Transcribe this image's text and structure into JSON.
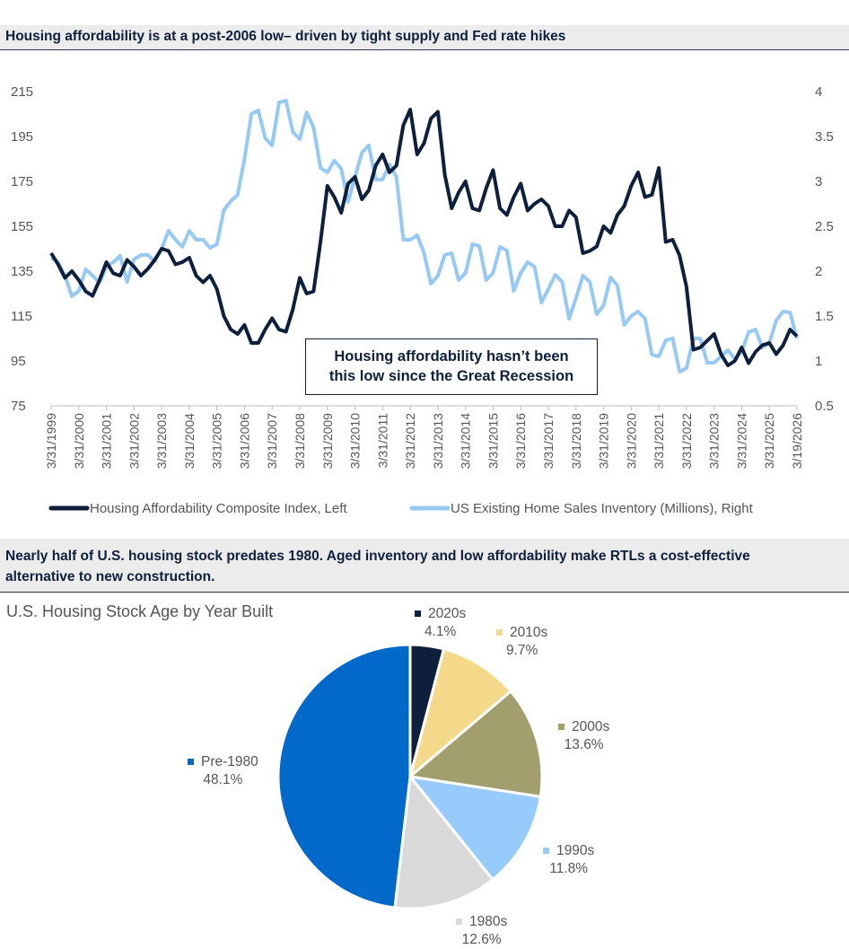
{
  "top_chart": {
    "banner": "Housing affordability is at a post-2006 low– driven by tight supply and Fed rate hikes",
    "callout_line1": "Housing affordability hasn’t been",
    "callout_line2": "this low since the Great Recession"
  },
  "bottom_section": {
    "banner_line1": "Nearly half of U.S. housing stock predates 1980. Aged inventory and low affordability make RTLs a cost-effective",
    "banner_line2": "alternative to new construction."
  },
  "chart_data": [
    {
      "type": "line",
      "title": "",
      "x_tick_labels": [
        "3/31/1999",
        "3/31/2000",
        "3/31/2001",
        "3/31/2002",
        "3/31/2003",
        "3/31/2004",
        "3/31/2005",
        "3/31/2006",
        "3/31/2007",
        "3/31/2008",
        "3/31/2009",
        "3/31/2010",
        "3/31/2011",
        "3/31/2012",
        "3/31/2013",
        "3/31/2014",
        "3/31/2015",
        "3/31/2016",
        "3/31/2017",
        "3/31/2018",
        "3/31/2019",
        "3/31/2020",
        "3/31/2021",
        "3/31/2022",
        "3/31/2023",
        "3/31/2024",
        "3/31/2025",
        "3/19/2026"
      ],
      "x_range": [
        1999.0,
        2026.0
      ],
      "y_left": {
        "ticks": [
          "75",
          "95",
          "115",
          "135",
          "155",
          "175",
          "195",
          "215"
        ],
        "range": [
          75,
          215
        ]
      },
      "y_right": {
        "ticks": [
          "0.5",
          "1",
          "1.5",
          "2",
          "2.5",
          "3",
          "3.5",
          "4"
        ],
        "range": [
          0.5,
          4
        ]
      },
      "grid": false,
      "legend_position": "bottom",
      "series": [
        {
          "name": "Housing Affordability Composite Index, Left",
          "axis": "left",
          "color": "#0d1f3c",
          "points": [
            [
              1999.0,
              143
            ],
            [
              1999.25,
              138
            ],
            [
              1999.5,
              132
            ],
            [
              1999.75,
              135
            ],
            [
              2000.0,
              131
            ],
            [
              2000.25,
              126
            ],
            [
              2000.5,
              124
            ],
            [
              2000.75,
              131
            ],
            [
              2001.0,
              139
            ],
            [
              2001.25,
              134
            ],
            [
              2001.5,
              133
            ],
            [
              2001.75,
              140
            ],
            [
              2002.0,
              137
            ],
            [
              2002.25,
              133
            ],
            [
              2002.5,
              136
            ],
            [
              2002.75,
              140
            ],
            [
              2003.0,
              145
            ],
            [
              2003.25,
              144
            ],
            [
              2003.5,
              138
            ],
            [
              2003.75,
              139
            ],
            [
              2004.0,
              141
            ],
            [
              2004.25,
              133
            ],
            [
              2004.5,
              130
            ],
            [
              2004.75,
              133
            ],
            [
              2005.0,
              127
            ],
            [
              2005.25,
              115
            ],
            [
              2005.5,
              109
            ],
            [
              2005.75,
              107
            ],
            [
              2006.0,
              111
            ],
            [
              2006.25,
              103
            ],
            [
              2006.5,
              103
            ],
            [
              2006.75,
              109
            ],
            [
              2007.0,
              114
            ],
            [
              2007.25,
              109
            ],
            [
              2007.5,
              108
            ],
            [
              2007.75,
              118
            ],
            [
              2008.0,
              132
            ],
            [
              2008.25,
              125
            ],
            [
              2008.5,
              126
            ],
            [
              2008.75,
              148
            ],
            [
              2009.0,
              173
            ],
            [
              2009.25,
              168
            ],
            [
              2009.5,
              161
            ],
            [
              2009.75,
              174
            ],
            [
              2010.0,
              177
            ],
            [
              2010.25,
              167
            ],
            [
              2010.5,
              171
            ],
            [
              2010.75,
              182
            ],
            [
              2011.0,
              187
            ],
            [
              2011.25,
              179
            ],
            [
              2011.5,
              182
            ],
            [
              2011.75,
              200
            ],
            [
              2012.0,
              207
            ],
            [
              2012.25,
              187
            ],
            [
              2012.5,
              192
            ],
            [
              2012.75,
              203
            ],
            [
              2013.0,
              206
            ],
            [
              2013.25,
              178
            ],
            [
              2013.5,
              163
            ],
            [
              2013.75,
              170
            ],
            [
              2014.0,
              175
            ],
            [
              2014.25,
              163
            ],
            [
              2014.5,
              162
            ],
            [
              2014.75,
              172
            ],
            [
              2015.0,
              180
            ],
            [
              2015.25,
              163
            ],
            [
              2015.5,
              160
            ],
            [
              2015.75,
              168
            ],
            [
              2016.0,
              174
            ],
            [
              2016.25,
              162
            ],
            [
              2016.5,
              165
            ],
            [
              2016.75,
              167
            ],
            [
              2017.0,
              164
            ],
            [
              2017.25,
              155
            ],
            [
              2017.5,
              155
            ],
            [
              2017.75,
              162
            ],
            [
              2018.0,
              159
            ],
            [
              2018.25,
              143
            ],
            [
              2018.5,
              144
            ],
            [
              2018.75,
              146
            ],
            [
              2019.0,
              155
            ],
            [
              2019.25,
              152
            ],
            [
              2019.5,
              160
            ],
            [
              2019.75,
              164
            ],
            [
              2020.0,
              173
            ],
            [
              2020.25,
              179
            ],
            [
              2020.5,
              168
            ],
            [
              2020.75,
              169
            ],
            [
              2021.0,
              181
            ],
            [
              2021.25,
              148
            ],
            [
              2021.5,
              149
            ],
            [
              2021.75,
              142
            ],
            [
              2022.0,
              128
            ],
            [
              2022.25,
              100
            ],
            [
              2022.5,
              101
            ],
            [
              2022.75,
              104
            ],
            [
              2023.0,
              107
            ],
            [
              2023.25,
              98
            ],
            [
              2023.5,
              93
            ],
            [
              2023.75,
              95
            ],
            [
              2024.0,
              101
            ],
            [
              2024.25,
              94
            ],
            [
              2024.5,
              99
            ],
            [
              2024.75,
              102
            ],
            [
              2025.0,
              103
            ],
            [
              2025.25,
              98
            ],
            [
              2025.5,
              102
            ],
            [
              2025.75,
              109
            ],
            [
              2026.0,
              106
            ]
          ]
        },
        {
          "name": "US Existing Home Sales Inventory (Millions), Right",
          "axis": "right",
          "color": "#97c9f5",
          "points": [
            [
              1999.0,
              2.15
            ],
            [
              1999.25,
              2.1
            ],
            [
              1999.5,
              1.95
            ],
            [
              1999.75,
              1.72
            ],
            [
              2000.0,
              1.78
            ],
            [
              2000.25,
              2.02
            ],
            [
              2000.5,
              1.95
            ],
            [
              2000.75,
              1.87
            ],
            [
              2001.0,
              2.05
            ],
            [
              2001.25,
              2.1
            ],
            [
              2001.5,
              2.17
            ],
            [
              2001.75,
              1.88
            ],
            [
              2002.0,
              2.13
            ],
            [
              2002.25,
              2.18
            ],
            [
              2002.5,
              2.18
            ],
            [
              2002.75,
              2.11
            ],
            [
              2003.0,
              2.25
            ],
            [
              2003.25,
              2.45
            ],
            [
              2003.5,
              2.35
            ],
            [
              2003.75,
              2.27
            ],
            [
              2004.0,
              2.45
            ],
            [
              2004.25,
              2.35
            ],
            [
              2004.5,
              2.35
            ],
            [
              2004.75,
              2.26
            ],
            [
              2005.0,
              2.3
            ],
            [
              2005.25,
              2.68
            ],
            [
              2005.5,
              2.78
            ],
            [
              2005.75,
              2.85
            ],
            [
              2006.0,
              3.25
            ],
            [
              2006.25,
              3.75
            ],
            [
              2006.5,
              3.79
            ],
            [
              2006.75,
              3.48
            ],
            [
              2007.0,
              3.4
            ],
            [
              2007.25,
              3.88
            ],
            [
              2007.5,
              3.9
            ],
            [
              2007.75,
              3.55
            ],
            [
              2008.0,
              3.47
            ],
            [
              2008.25,
              3.77
            ],
            [
              2008.5,
              3.6
            ],
            [
              2008.75,
              3.15
            ],
            [
              2009.0,
              3.1
            ],
            [
              2009.25,
              3.23
            ],
            [
              2009.5,
              3.14
            ],
            [
              2009.75,
              2.77
            ],
            [
              2010.0,
              3.05
            ],
            [
              2010.25,
              3.32
            ],
            [
              2010.5,
              3.4
            ],
            [
              2010.75,
              3.02
            ],
            [
              2011.0,
              3.02
            ],
            [
              2011.25,
              3.19
            ],
            [
              2011.5,
              3.05
            ],
            [
              2011.75,
              2.35
            ],
            [
              2012.0,
              2.35
            ],
            [
              2012.25,
              2.4
            ],
            [
              2012.5,
              2.2
            ],
            [
              2012.75,
              1.86
            ],
            [
              2013.0,
              1.95
            ],
            [
              2013.25,
              2.18
            ],
            [
              2013.5,
              2.2
            ],
            [
              2013.75,
              1.9
            ],
            [
              2014.0,
              1.98
            ],
            [
              2014.25,
              2.3
            ],
            [
              2014.5,
              2.28
            ],
            [
              2014.75,
              1.9
            ],
            [
              2015.0,
              1.98
            ],
            [
              2015.25,
              2.27
            ],
            [
              2015.5,
              2.23
            ],
            [
              2015.75,
              1.78
            ],
            [
              2016.0,
              1.98
            ],
            [
              2016.25,
              2.1
            ],
            [
              2016.5,
              2.05
            ],
            [
              2016.75,
              1.65
            ],
            [
              2017.0,
              1.8
            ],
            [
              2017.25,
              1.96
            ],
            [
              2017.5,
              1.88
            ],
            [
              2017.75,
              1.47
            ],
            [
              2018.0,
              1.7
            ],
            [
              2018.25,
              1.95
            ],
            [
              2018.5,
              1.88
            ],
            [
              2018.75,
              1.52
            ],
            [
              2019.0,
              1.62
            ],
            [
              2019.25,
              1.93
            ],
            [
              2019.5,
              1.84
            ],
            [
              2019.75,
              1.4
            ],
            [
              2020.0,
              1.5
            ],
            [
              2020.25,
              1.55
            ],
            [
              2020.5,
              1.47
            ],
            [
              2020.75,
              1.07
            ],
            [
              2021.0,
              1.05
            ],
            [
              2021.25,
              1.23
            ],
            [
              2021.5,
              1.25
            ],
            [
              2021.75,
              0.88
            ],
            [
              2022.0,
              0.92
            ],
            [
              2022.25,
              1.25
            ],
            [
              2022.5,
              1.25
            ],
            [
              2022.75,
              0.98
            ],
            [
              2023.0,
              0.98
            ],
            [
              2023.25,
              1.05
            ],
            [
              2023.5,
              1.12
            ],
            [
              2023.75,
              1.02
            ],
            [
              2024.0,
              1.1
            ],
            [
              2024.25,
              1.32
            ],
            [
              2024.5,
              1.35
            ],
            [
              2024.75,
              1.15
            ],
            [
              2025.0,
              1.2
            ],
            [
              2025.25,
              1.45
            ],
            [
              2025.5,
              1.55
            ],
            [
              2025.75,
              1.54
            ],
            [
              2026.0,
              1.25
            ]
          ]
        }
      ]
    },
    {
      "type": "pie",
      "title": "U.S. Housing Stock Age by Year Built",
      "start_angle_deg": 0,
      "direction": "clockwise",
      "slices": [
        {
          "label": "2020s",
          "value": 4.1,
          "display": "4.1%",
          "color": "#0d1f3c"
        },
        {
          "label": "2010s",
          "value": 9.7,
          "display": "9.7%",
          "color": "#f5d98b"
        },
        {
          "label": "2000s",
          "value": 13.6,
          "display": "13.6%",
          "color": "#a39e6e"
        },
        {
          "label": "1990s",
          "value": 11.8,
          "display": "11.8%",
          "color": "#97cbfb"
        },
        {
          "label": "1980s",
          "value": 12.6,
          "display": "12.6%",
          "color": "#d9d9d9"
        },
        {
          "label": "Pre-1980",
          "value": 48.1,
          "display": "48.1%",
          "color": "#0069c9"
        }
      ]
    }
  ]
}
